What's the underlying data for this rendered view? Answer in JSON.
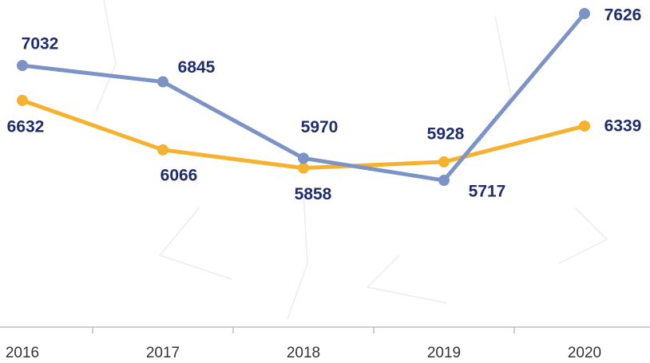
{
  "chart_data": {
    "type": "line",
    "categories": [
      "2016",
      "2017",
      "2018",
      "2019",
      "2020"
    ],
    "series": [
      {
        "color": "#7b93c5",
        "values": [
          7032,
          6845,
          5970,
          5717,
          7626
        ]
      },
      {
        "color": "#f6b22f",
        "values": [
          6632,
          6066,
          5858,
          5928,
          6339
        ]
      }
    ],
    "ylim": [
      4000,
      7800
    ]
  }
}
